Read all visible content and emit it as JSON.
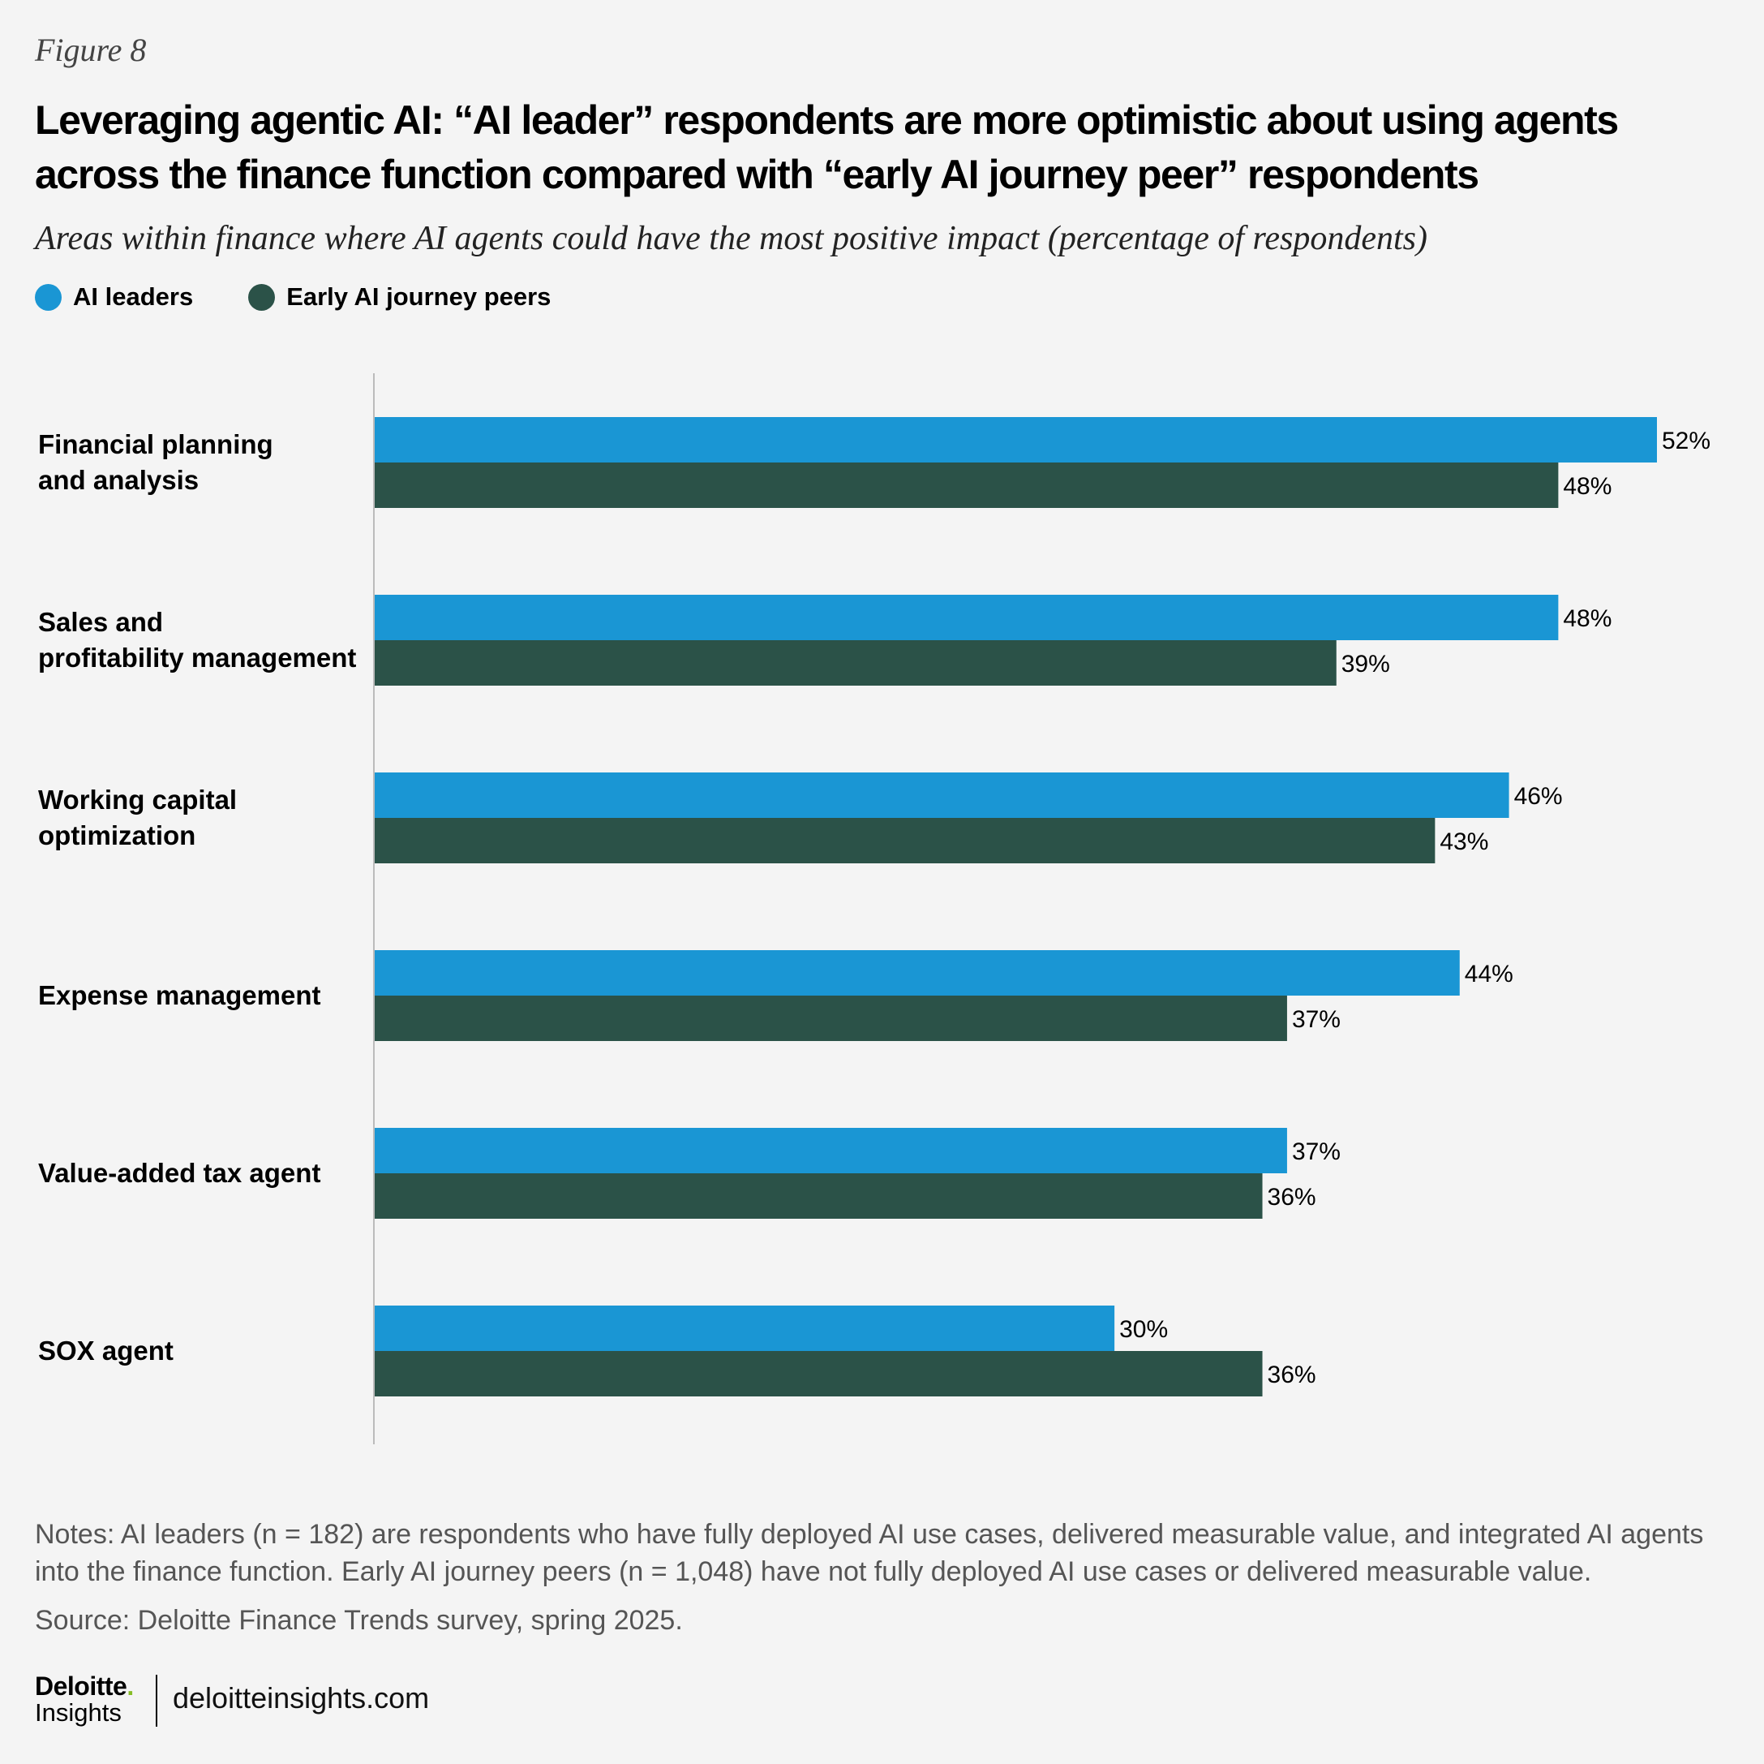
{
  "figure_label": "Figure 8",
  "chart_data": {
    "type": "bar",
    "orientation": "horizontal",
    "title": "Leveraging agentic AI: “AI leader” respondents are more optimistic about using agents across the finance function compared with “early AI journey peer” respondents",
    "subtitle": "Areas within finance where AI agents could have the most positive impact (percentage of respondents)",
    "categories": [
      [
        "Financial planning",
        "and analysis"
      ],
      [
        "Sales and",
        "profitability management"
      ],
      [
        "Working capital",
        "optimization"
      ],
      [
        "Expense management"
      ],
      [
        "Value-added tax agent"
      ],
      [
        "SOX agent"
      ]
    ],
    "series": [
      {
        "name": "AI leaders",
        "color": "#1a96d4",
        "values": [
          52,
          48,
          46,
          44,
          37,
          30
        ],
        "labels": [
          "52%",
          "48%",
          "46%",
          "44%",
          "37%",
          "30%"
        ]
      },
      {
        "name": "Early AI journey peers",
        "color": "#2b5248",
        "values": [
          48,
          39,
          43,
          37,
          36,
          36
        ],
        "labels": [
          "48%",
          "39%",
          "43%",
          "37%",
          "36%",
          "36%"
        ]
      }
    ],
    "xlim": [
      0,
      52
    ],
    "xlabel": "",
    "ylabel": "",
    "grid": false,
    "legend_position": "top-left"
  },
  "notes": "Notes: AI leaders (n = 182) are respondents who have fully deployed AI use cases, delivered measurable value, and integrated AI agents into the finance function. Early AI journey peers (n = 1,048) have not fully deployed AI use cases or delivered measurable value.",
  "source": "Source: Deloitte Finance Trends survey, spring 2025.",
  "brand": {
    "name": "Deloitte",
    "dot": ".",
    "sub": "Insights",
    "site": "deloitteinsights.com"
  }
}
